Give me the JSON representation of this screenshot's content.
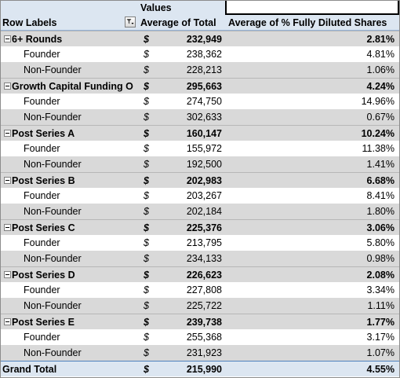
{
  "header": {
    "values_label": "Values",
    "row_labels": "Row Labels",
    "col_total": "Average of Total",
    "col_pct": "Average of % Fully Diluted Shares"
  },
  "currency_symbol": "$",
  "groups": [
    {
      "label": "6+ Rounds",
      "total": "232,949",
      "pct": "2.81%",
      "children": [
        {
          "label": "Founder",
          "total": "238,362",
          "pct": "4.81%"
        },
        {
          "label": "Non-Founder",
          "total": "228,213",
          "pct": "1.06%"
        }
      ]
    },
    {
      "label": "Growth Capital Funding O",
      "total": "295,663",
      "pct": "4.24%",
      "children": [
        {
          "label": "Founder",
          "total": "274,750",
          "pct": "14.96%"
        },
        {
          "label": "Non-Founder",
          "total": "302,633",
          "pct": "0.67%"
        }
      ]
    },
    {
      "label": "Post Series A",
      "total": "160,147",
      "pct": "10.24%",
      "children": [
        {
          "label": "Founder",
          "total": "155,972",
          "pct": "11.38%"
        },
        {
          "label": "Non-Founder",
          "total": "192,500",
          "pct": "1.41%"
        }
      ]
    },
    {
      "label": "Post Series B",
      "total": "202,983",
      "pct": "6.68%",
      "children": [
        {
          "label": "Founder",
          "total": "203,267",
          "pct": "8.41%"
        },
        {
          "label": "Non-Founder",
          "total": "202,184",
          "pct": "1.80%"
        }
      ]
    },
    {
      "label": "Post Series C",
      "total": "225,376",
      "pct": "3.06%",
      "children": [
        {
          "label": "Founder",
          "total": "213,795",
          "pct": "5.80%"
        },
        {
          "label": "Non-Founder",
          "total": "234,133",
          "pct": "0.98%"
        }
      ]
    },
    {
      "label": "Post Series D",
      "total": "226,623",
      "pct": "2.08%",
      "children": [
        {
          "label": "Founder",
          "total": "227,808",
          "pct": "3.34%"
        },
        {
          "label": "Non-Founder",
          "total": "225,722",
          "pct": "1.11%"
        }
      ]
    },
    {
      "label": "Post Series E",
      "total": "239,738",
      "pct": "1.77%",
      "children": [
        {
          "label": "Founder",
          "total": "255,368",
          "pct": "3.17%"
        },
        {
          "label": "Non-Founder",
          "total": "231,923",
          "pct": "1.07%"
        }
      ]
    }
  ],
  "grand_total": {
    "label": "Grand Total",
    "total": "215,990",
    "pct": "4.55%"
  }
}
